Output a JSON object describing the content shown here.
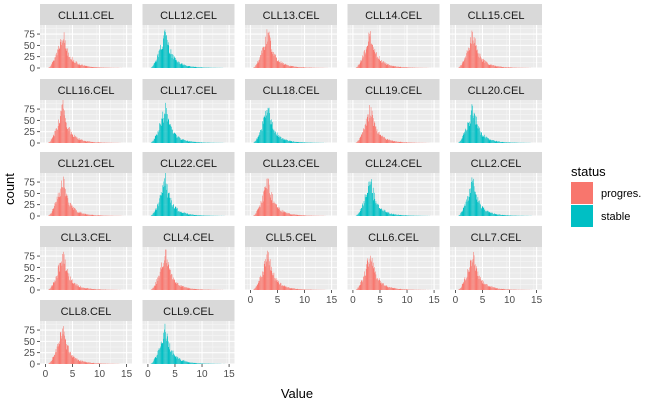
{
  "chart_data": {
    "type": "histogram",
    "facet": "wrap",
    "xlabel": "Value",
    "ylabel": "count",
    "xlim": [
      -1,
      16
    ],
    "ylim": [
      0,
      95
    ],
    "x_ticks": [
      0,
      5,
      10,
      15
    ],
    "y_ticks": [
      0,
      25,
      50,
      75
    ],
    "grid": true,
    "legend": {
      "title": "status",
      "placement": "right",
      "entries": [
        {
          "label": "progres.",
          "color": "#F8766D"
        },
        {
          "label": "stable",
          "color": "#00BFC4"
        }
      ]
    },
    "distribution": {
      "bin_width": 0.1,
      "x_range": [
        0.3,
        14.6
      ],
      "peak_x": 3.2,
      "peak_count": 80
    },
    "panels": [
      {
        "label": "CLL11.CEL",
        "status": "progres."
      },
      {
        "label": "CLL12.CEL",
        "status": "stable"
      },
      {
        "label": "CLL13.CEL",
        "status": "progres."
      },
      {
        "label": "CLL14.CEL",
        "status": "progres."
      },
      {
        "label": "CLL15.CEL",
        "status": "progres."
      },
      {
        "label": "CLL16.CEL",
        "status": "progres."
      },
      {
        "label": "CLL17.CEL",
        "status": "stable"
      },
      {
        "label": "CLL18.CEL",
        "status": "stable"
      },
      {
        "label": "CLL19.CEL",
        "status": "progres."
      },
      {
        "label": "CLL20.CEL",
        "status": "stable"
      },
      {
        "label": "CLL21.CEL",
        "status": "progres."
      },
      {
        "label": "CLL22.CEL",
        "status": "stable"
      },
      {
        "label": "CLL23.CEL",
        "status": "progres."
      },
      {
        "label": "CLL24.CEL",
        "status": "stable"
      },
      {
        "label": "CLL2.CEL",
        "status": "stable"
      },
      {
        "label": "CLL3.CEL",
        "status": "progres."
      },
      {
        "label": "CLL4.CEL",
        "status": "progres."
      },
      {
        "label": "CLL5.CEL",
        "status": "progres."
      },
      {
        "label": "CLL6.CEL",
        "status": "progres."
      },
      {
        "label": "CLL7.CEL",
        "status": "progres."
      },
      {
        "label": "CLL8.CEL",
        "status": "progres."
      },
      {
        "label": "CLL9.CEL",
        "status": "stable"
      }
    ]
  }
}
